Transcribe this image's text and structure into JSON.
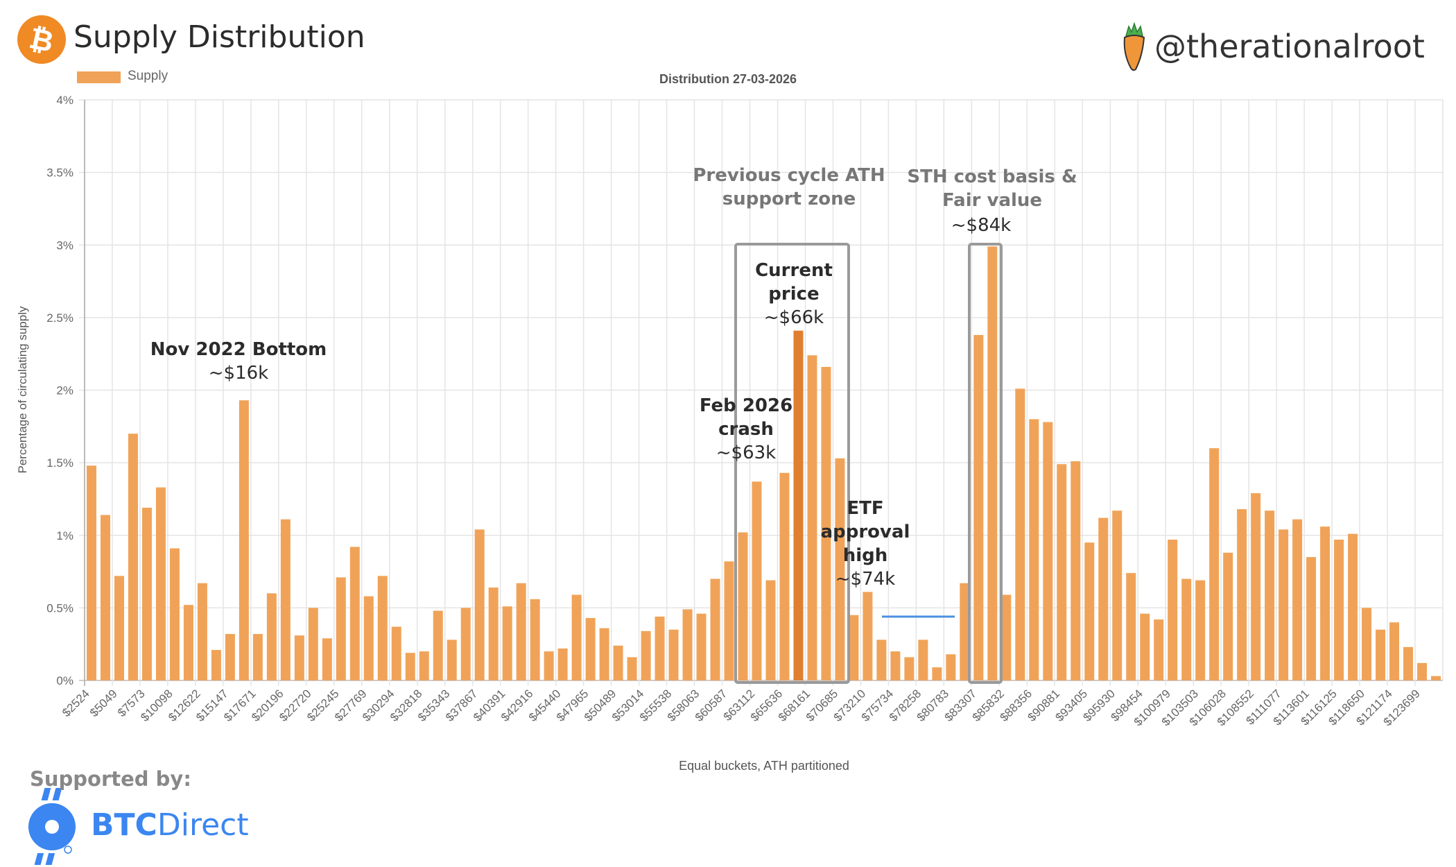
{
  "header": {
    "title": "Supply Distribution",
    "handle": "@therationalroot"
  },
  "footer": {
    "supported_by": "Supported by:",
    "sponsor_bold": "BTC",
    "sponsor_rest": "Direct"
  },
  "colors": {
    "bar": "#f0a358",
    "bar_highlight": "#e07f30",
    "box": "#9a9a9a",
    "etf_line": "#4a90e2",
    "bitcoin": "#f08a24",
    "sponsor": "#3b86f0"
  },
  "annotations": {
    "nov2022": {
      "line1": "Nov 2022 Bottom",
      "line2": "~$16k"
    },
    "prev_cycle": {
      "line1": "Previous cycle ATH",
      "line2": "support zone"
    },
    "current": {
      "line1": "Current",
      "line2": "price",
      "line3": "~$66k"
    },
    "feb2026": {
      "line1": "Feb 2026",
      "line2": "crash",
      "line3": "~$63k"
    },
    "etf": {
      "line1": "ETF",
      "line2": "approval",
      "line3": "high",
      "line4": "~$74k"
    },
    "sth": {
      "line1": "STH cost basis &",
      "line2": "Fair value",
      "line3": "~$84k"
    }
  },
  "chart_data": {
    "type": "bar",
    "title": "Distribution 27-03-2026",
    "xlabel": "Equal buckets, ATH partitioned",
    "ylabel": "Percentage of circulating supply",
    "legend": [
      "Supply"
    ],
    "legend_position": "top-left",
    "ylim": [
      0,
      4
    ],
    "yticks": [
      "0%",
      "0.5%",
      "1%",
      "1.5%",
      "2%",
      "2.5%",
      "3%",
      "3.5%",
      "4%"
    ],
    "grid": true,
    "x_tick_labels": [
      "$2524",
      "$5049",
      "$7573",
      "$10098",
      "$12622",
      "$15147",
      "$17671",
      "$20196",
      "$22720",
      "$25245",
      "$27769",
      "$30294",
      "$32818",
      "$35343",
      "$37867",
      "$40391",
      "$42916",
      "$45440",
      "$47965",
      "$50489",
      "$53014",
      "$55538",
      "$58063",
      "$60587",
      "$63112",
      "$65636",
      "$68161",
      "$70685",
      "$73210",
      "$75734",
      "$78258",
      "$80783",
      "$83307",
      "$85832",
      "$88356",
      "$90881",
      "$93405",
      "$95930",
      "$98454",
      "$100979",
      "$103503",
      "$106028",
      "$108552",
      "$111077",
      "$113601",
      "$116125",
      "$118650",
      "$121174",
      "$123699"
    ],
    "highlight_index": 51,
    "values": [
      1.48,
      1.14,
      0.72,
      1.7,
      1.19,
      1.33,
      0.91,
      0.52,
      0.67,
      0.21,
      0.32,
      1.93,
      0.32,
      0.6,
      1.11,
      0.31,
      0.5,
      0.29,
      0.71,
      0.92,
      0.58,
      0.72,
      0.37,
      0.19,
      0.2,
      0.48,
      0.28,
      0.5,
      1.04,
      0.64,
      0.51,
      0.67,
      0.56,
      0.2,
      0.22,
      0.59,
      0.43,
      0.36,
      0.24,
      0.16,
      0.34,
      0.44,
      0.35,
      0.49,
      0.46,
      0.7,
      0.82,
      1.02,
      1.37,
      0.69,
      1.43,
      2.41,
      2.24,
      2.16,
      1.53,
      0.45,
      0.61,
      0.28,
      0.2,
      0.16,
      0.28,
      0.09,
      0.18,
      0.67,
      2.38,
      2.99,
      0.59,
      2.01,
      1.8,
      1.78,
      1.49,
      1.51,
      0.95,
      1.12,
      1.17,
      0.74,
      0.46,
      0.42,
      0.97,
      0.7,
      0.69,
      1.6,
      0.88,
      1.18,
      1.29,
      1.17,
      1.04,
      1.11,
      0.85,
      1.06,
      0.97,
      1.01,
      0.5,
      0.35,
      0.4,
      0.23,
      0.12,
      0.03
    ]
  }
}
